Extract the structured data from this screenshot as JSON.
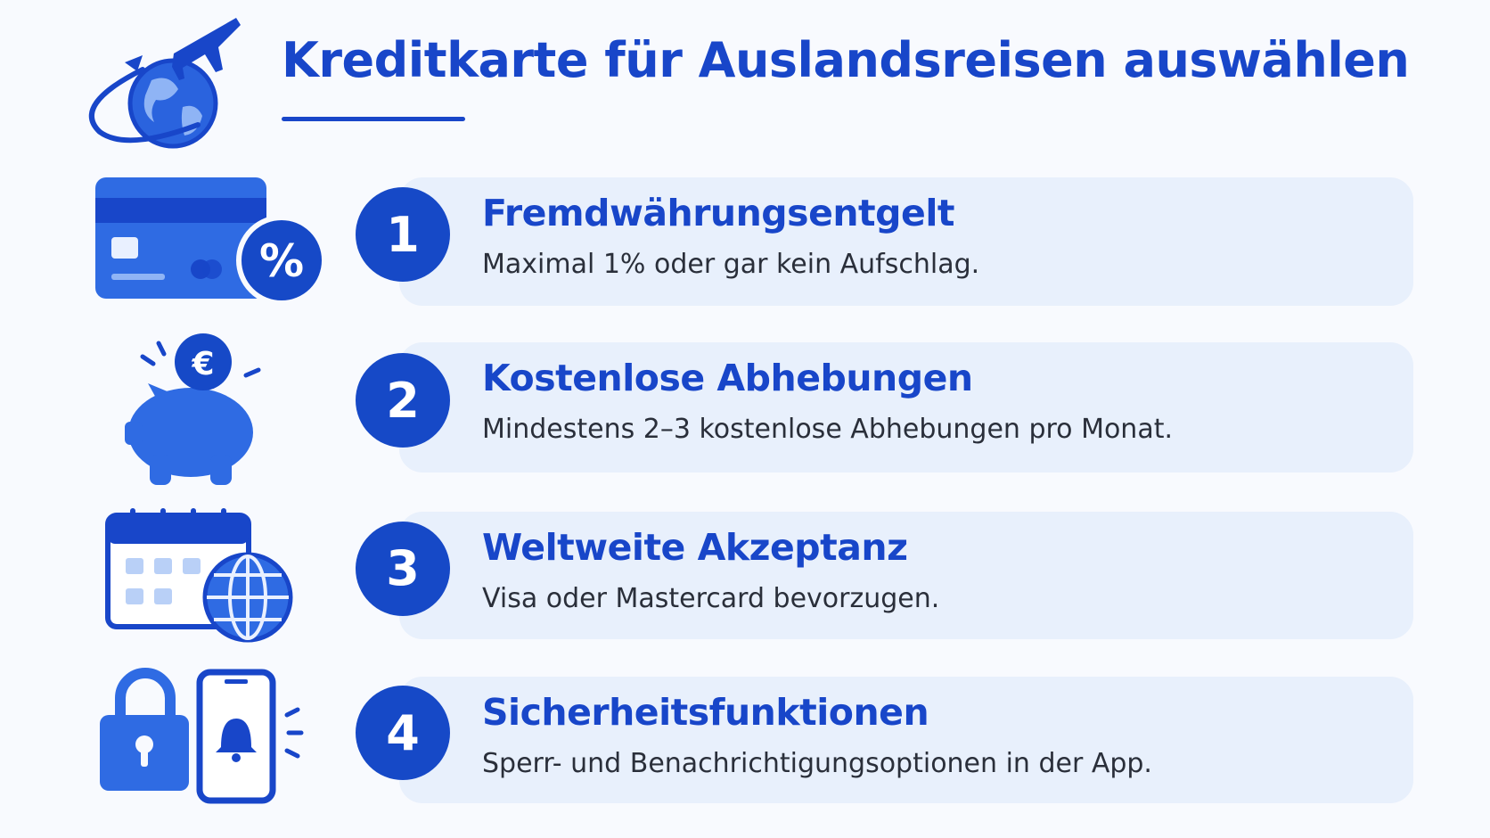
{
  "header": {
    "title": "Kreditkarte für Auslandsreisen auswählen"
  },
  "items": [
    {
      "number": 1,
      "title": "Fremdwährungsentgelt",
      "text": "Maximal 1% oder gar kein Aufschlag."
    },
    {
      "number": 2,
      "title": "Kostenlose Abhebungen",
      "text": "Mindestens 2–3 kostenlose Abhebungen pro Monat."
    },
    {
      "number": 3,
      "title": "Weltweite Akzeptanz",
      "text": "Visa oder Mastercard bevorzugen."
    },
    {
      "number": 4,
      "title": "Sicherheitsfunktionen",
      "text": "Sperr- und Benachrichtigungsoptionen in der App."
    }
  ]
}
